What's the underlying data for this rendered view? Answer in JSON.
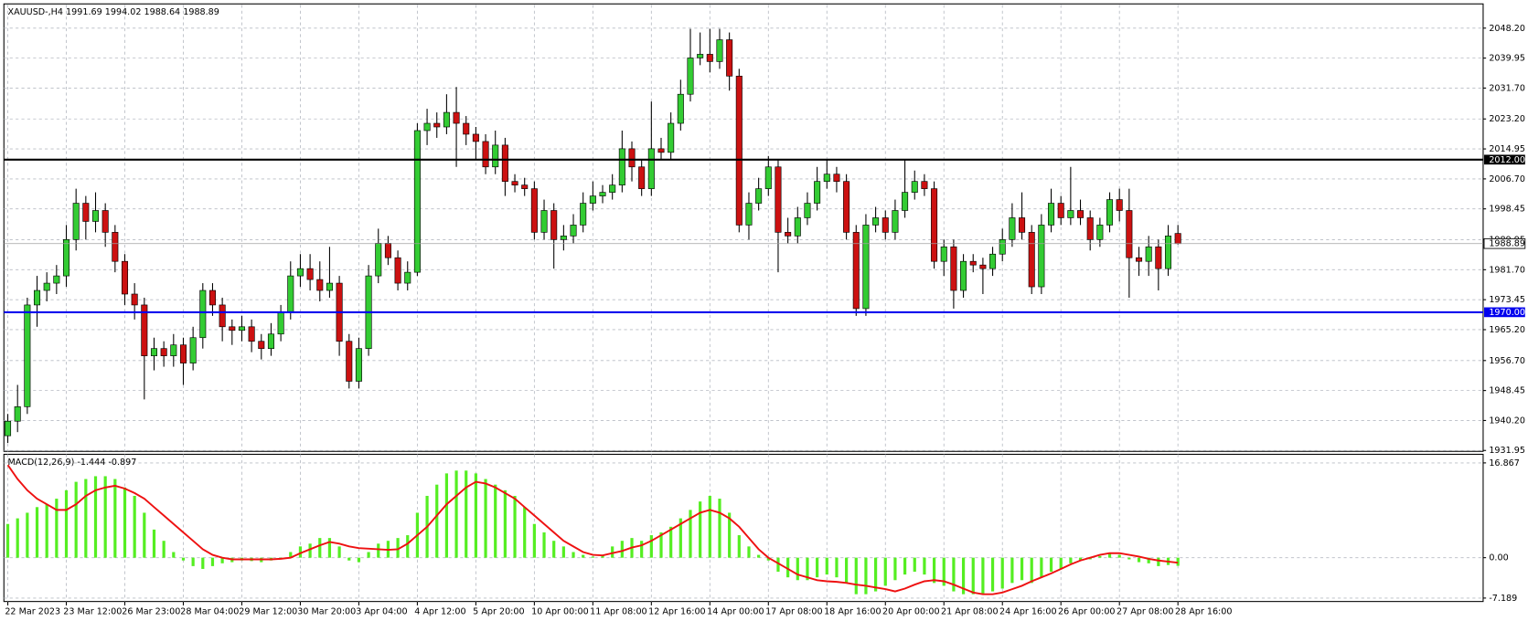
{
  "chart_data": {
    "type": "candlestick",
    "title": "XAUUSD-,H4",
    "categories": [
      "22 Mar 2023",
      null,
      null,
      null,
      null,
      null,
      "23 Mar 12:00",
      null,
      null,
      null,
      null,
      null,
      "26 Mar 23:00",
      null,
      null,
      null,
      null,
      null,
      "28 Mar 04:00",
      null,
      null,
      null,
      null,
      null,
      "29 Mar 12:00",
      null,
      null,
      null,
      null,
      null,
      "30 Mar 20:00",
      null,
      null,
      null,
      null,
      null,
      "3 Apr 04:00",
      null,
      null,
      null,
      null,
      null,
      "4 Apr 12:00",
      null,
      null,
      null,
      null,
      null,
      "5 Apr 20:00",
      null,
      null,
      null,
      null,
      null,
      "10 Apr 00:00",
      null,
      null,
      null,
      null,
      null,
      "11 Apr 08:00",
      null,
      null,
      null,
      null,
      null,
      "12 Apr 16:00",
      null,
      null,
      null,
      null,
      null,
      "14 Apr 00:00",
      null,
      null,
      null,
      null,
      null,
      "17 Apr 08:00",
      null,
      null,
      null,
      null,
      null,
      "18 Apr 16:00",
      null,
      null,
      null,
      null,
      null,
      "20 Apr 00:00",
      null,
      null,
      null,
      null,
      null,
      "21 Apr 08:00",
      null,
      null,
      null,
      null,
      null,
      "24 Apr 16:00",
      null,
      null,
      null,
      null,
      null,
      "26 Apr 00:00",
      null,
      null,
      null,
      null,
      null,
      "27 Apr 08:00",
      null,
      null,
      null,
      null,
      null,
      "28 Apr 16:00"
    ],
    "candles": [
      [
        1936,
        1942,
        1934,
        1940
      ],
      [
        1940,
        1950,
        1937,
        1944
      ],
      [
        1944,
        1974,
        1942,
        1972
      ],
      [
        1972,
        1980,
        1966,
        1976
      ],
      [
        1976,
        1981,
        1973,
        1978
      ],
      [
        1978,
        1983,
        1975,
        1980
      ],
      [
        1980,
        1994,
        1977,
        1990
      ],
      [
        1990,
        2004,
        1987,
        2000
      ],
      [
        2000,
        2002,
        1990,
        1995
      ],
      [
        1995,
        2003,
        1992,
        1998
      ],
      [
        1998,
        2000,
        1988,
        1992
      ],
      [
        1992,
        1994,
        1981,
        1984
      ],
      [
        1984,
        1986,
        1972,
        1975
      ],
      [
        1975,
        1978,
        1968,
        1972
      ],
      [
        1972,
        1974,
        1946,
        1958
      ],
      [
        1958,
        1963,
        1954,
        1960
      ],
      [
        1960,
        1962,
        1955,
        1958
      ],
      [
        1958,
        1964,
        1955,
        1961
      ],
      [
        1961,
        1963,
        1950,
        1956
      ],
      [
        1956,
        1966,
        1954,
        1963
      ],
      [
        1963,
        1978,
        1960,
        1976
      ],
      [
        1976,
        1978,
        1969,
        1972
      ],
      [
        1972,
        1974,
        1962,
        1966
      ],
      [
        1966,
        1968,
        1961,
        1965
      ],
      [
        1965,
        1969,
        1962,
        1966
      ],
      [
        1966,
        1968,
        1959,
        1962
      ],
      [
        1962,
        1964,
        1957,
        1960
      ],
      [
        1960,
        1967,
        1958,
        1964
      ],
      [
        1964,
        1972,
        1962,
        1970
      ],
      [
        1970,
        1984,
        1968,
        1980
      ],
      [
        1980,
        1986,
        1977,
        1982
      ],
      [
        1982,
        1986,
        1976,
        1979
      ],
      [
        1979,
        1984,
        1973,
        1976
      ],
      [
        1976,
        1988,
        1974,
        1978
      ],
      [
        1978,
        1980,
        1958,
        1962
      ],
      [
        1962,
        1964,
        1949,
        1951
      ],
      [
        1951,
        1963,
        1949,
        1960
      ],
      [
        1960,
        1983,
        1958,
        1980
      ],
      [
        1980,
        1993,
        1978,
        1989
      ],
      [
        1989,
        1991,
        1983,
        1985
      ],
      [
        1985,
        1987,
        1976,
        1978
      ],
      [
        1978,
        1984,
        1976,
        1981
      ],
      [
        1981,
        2022,
        1980,
        2020
      ],
      [
        2020,
        2026,
        2016,
        2022
      ],
      [
        2022,
        2025,
        2018,
        2021
      ],
      [
        2021,
        2030,
        2019,
        2025
      ],
      [
        2025,
        2032,
        2010,
        2022
      ],
      [
        2022,
        2024,
        2016,
        2019
      ],
      [
        2019,
        2021,
        2012,
        2017
      ],
      [
        2017,
        2019,
        2008,
        2010
      ],
      [
        2010,
        2020,
        2008,
        2016
      ],
      [
        2016,
        2018,
        2002,
        2006
      ],
      [
        2006,
        2008,
        2003,
        2005
      ],
      [
        2005,
        2007,
        2002,
        2004
      ],
      [
        2004,
        2006,
        1990,
        1992
      ],
      [
        1992,
        2001,
        1990,
        1998
      ],
      [
        1998,
        2000,
        1982,
        1990
      ],
      [
        1990,
        1994,
        1987,
        1991
      ],
      [
        1991,
        1997,
        1989,
        1994
      ],
      [
        1994,
        2003,
        1992,
        2000
      ],
      [
        2000,
        2006,
        1998,
        2002
      ],
      [
        2002,
        2005,
        2000,
        2003
      ],
      [
        2003,
        2008,
        2001,
        2005
      ],
      [
        2005,
        2020,
        2003,
        2015
      ],
      [
        2015,
        2017,
        2006,
        2010
      ],
      [
        2010,
        2012,
        2002,
        2004
      ],
      [
        2004,
        2028,
        2002,
        2015
      ],
      [
        2015,
        2018,
        2012,
        2014
      ],
      [
        2014,
        2025,
        2012,
        2022
      ],
      [
        2022,
        2034,
        2020,
        2030
      ],
      [
        2030,
        2048,
        2028,
        2040
      ],
      [
        2040,
        2047,
        2038,
        2041
      ],
      [
        2041,
        2048,
        2036,
        2039
      ],
      [
        2039,
        2048,
        2037,
        2045
      ],
      [
        2045,
        2047,
        2031,
        2035
      ],
      [
        2035,
        2037,
        1992,
        1994
      ],
      [
        1994,
        2003,
        1990,
        2000
      ],
      [
        2000,
        2007,
        1998,
        2004
      ],
      [
        2004,
        2013,
        2002,
        2010
      ],
      [
        2010,
        2012,
        1981,
        1992
      ],
      [
        1992,
        1996,
        1989,
        1991
      ],
      [
        1991,
        1999,
        1989,
        1996
      ],
      [
        1996,
        2003,
        1994,
        2000
      ],
      [
        2000,
        2010,
        1998,
        2006
      ],
      [
        2006,
        2012,
        2004,
        2008
      ],
      [
        2008,
        2010,
        2003,
        2006
      ],
      [
        2006,
        2008,
        1990,
        1992
      ],
      [
        1992,
        1994,
        1969,
        1971
      ],
      [
        1971,
        1997,
        1969,
        1994
      ],
      [
        1994,
        1999,
        1992,
        1996
      ],
      [
        1996,
        1998,
        1990,
        1992
      ],
      [
        1992,
        2001,
        1990,
        1998
      ],
      [
        1998,
        2012,
        1996,
        2003
      ],
      [
        2003,
        2009,
        2001,
        2006
      ],
      [
        2006,
        2008,
        2002,
        2004
      ],
      [
        2004,
        2006,
        1982,
        1984
      ],
      [
        1984,
        1990,
        1980,
        1988
      ],
      [
        1988,
        1990,
        1971,
        1976
      ],
      [
        1976,
        1986,
        1974,
        1984
      ],
      [
        1984,
        1986,
        1981,
        1983
      ],
      [
        1983,
        1985,
        1975,
        1982
      ],
      [
        1982,
        1988,
        1980,
        1986
      ],
      [
        1986,
        1993,
        1984,
        1990
      ],
      [
        1990,
        2000,
        1988,
        1996
      ],
      [
        1996,
        2003,
        1990,
        1992
      ],
      [
        1992,
        1994,
        1975,
        1977
      ],
      [
        1977,
        1997,
        1975,
        1994
      ],
      [
        1994,
        2004,
        1992,
        2000
      ],
      [
        2000,
        2002,
        1994,
        1996
      ],
      [
        1996,
        2010,
        1994,
        1998
      ],
      [
        1998,
        2001,
        1994,
        1996
      ],
      [
        1996,
        1998,
        1987,
        1990
      ],
      [
        1990,
        1996,
        1988,
        1994
      ],
      [
        1994,
        2003,
        1992,
        2001
      ],
      [
        2001,
        2004,
        1995,
        1998
      ],
      [
        1998,
        2004,
        1974,
        1985
      ],
      [
        1985,
        1988,
        1980,
        1984
      ],
      [
        1984,
        1991,
        1980,
        1988
      ],
      [
        1988,
        1990,
        1976,
        1982
      ],
      [
        1982,
        1994,
        1980,
        1991
      ],
      [
        1991.69,
        1994.02,
        1988.64,
        1988.89
      ]
    ],
    "up_color": "#33cc33",
    "down_color": "#cc1111",
    "ylim": [
      1931.7,
      2054.6
    ],
    "yticks": [
      {
        "value": 2048.2,
        "label": "2048.20"
      },
      2039.95,
      {
        "value": 2031.7,
        "label": "2031.70"
      },
      {
        "value": 2023.2,
        "label": "2023.20"
      },
      2014.95,
      {
        "value": 2006.7,
        "label": "2006.70"
      },
      1998.45,
      1989.95,
      {
        "value": 1981.7,
        "label": "1981.70"
      },
      1973.45,
      {
        "value": 1965.2,
        "label": "1965.20"
      },
      {
        "value": 1956.7,
        "label": "1956.70"
      },
      1948.45,
      {
        "value": 1940.2,
        "label": "1940.20"
      },
      1931.95
    ],
    "grid": true,
    "hlines": [
      {
        "value": 2012,
        "label": "2012.00",
        "color": "#000000"
      },
      {
        "value": 1970,
        "label": "1970.00",
        "color": "#0000ee"
      }
    ],
    "indicator": {
      "type": "macd",
      "title": "MACD(12,26,9)",
      "ylim": [
        -7.8,
        18.4
      ],
      "yticks": [
        16.867,
        {
          "value": 0,
          "label": "0.00"
        },
        -7.189
      ],
      "histogram": {
        "color": "#55ee22",
        "values": [
          6,
          7,
          8,
          9,
          9.5,
          10.5,
          12,
          13.5,
          14,
          14.5,
          14.5,
          14,
          12.5,
          11,
          8,
          5,
          3,
          1,
          -0.5,
          -1.5,
          -2,
          -1.5,
          -1,
          -0.8,
          -0.5,
          -0.6,
          -0.8,
          -0.5,
          0,
          1,
          2,
          2.5,
          3.5,
          3.5,
          2,
          -0.5,
          -0.8,
          1,
          2.5,
          3,
          3.5,
          4,
          8,
          11,
          13,
          15,
          15.5,
          15.5,
          15,
          14,
          13,
          12,
          11,
          9,
          6,
          4.5,
          3,
          2,
          1,
          0.5,
          0.2,
          0.5,
          2,
          3,
          3.5,
          3,
          4,
          4.5,
          5.5,
          7,
          8.5,
          10,
          11,
          10.5,
          8,
          4,
          2,
          0.5,
          -0.5,
          -2.5,
          -3.5,
          -4,
          -4,
          -3.5,
          -3,
          -3.5,
          -4.5,
          -6.5,
          -6.5,
          -6,
          -5,
          -4,
          -3,
          -2.5,
          -3,
          -4.5,
          -5,
          -6,
          -6.5,
          -6.5,
          -6.5,
          -6,
          -5.5,
          -4.5,
          -4,
          -4.5,
          -3.5,
          -2.5,
          -2,
          -1,
          -0.5,
          -0.3,
          0.3,
          0.8,
          0.5,
          -0.3,
          -0.8,
          -1,
          -1.5,
          -1.3,
          -1.444
        ]
      },
      "signal": {
        "color": "#ee1111",
        "values": [
          16.5,
          14,
          12,
          10.5,
          9.5,
          8.5,
          8.5,
          9.5,
          11,
          12,
          12.5,
          12.8,
          12.3,
          11.5,
          10.5,
          9,
          7.5,
          6,
          4.5,
          3,
          1.5,
          0.5,
          0,
          -0.3,
          -0.3,
          -0.3,
          -0.3,
          -0.3,
          -0.2,
          0,
          0.8,
          1.5,
          2.2,
          2.8,
          2.5,
          2,
          1.7,
          1.6,
          1.5,
          1.4,
          1.5,
          2.5,
          4,
          5.5,
          7.5,
          9.5,
          11,
          12.5,
          13.5,
          13.2,
          12.5,
          11.5,
          10.5,
          9,
          7.5,
          6,
          4.5,
          3,
          2,
          1,
          0.5,
          0.4,
          0.8,
          1.2,
          1.8,
          2.2,
          3,
          4,
          5,
          6,
          7,
          8,
          8.5,
          8,
          7,
          5.5,
          3.5,
          1.5,
          0,
          -1,
          -2,
          -3,
          -3.5,
          -4,
          -4.2,
          -4.3,
          -4.5,
          -4.8,
          -5,
          -5.3,
          -5.6,
          -6,
          -5.5,
          -4.8,
          -4.2,
          -4,
          -4.2,
          -4.8,
          -5.5,
          -6.2,
          -6.5,
          -6.5,
          -6.2,
          -5.6,
          -5,
          -4.2,
          -3.5,
          -2.8,
          -2,
          -1.2,
          -0.5,
          0,
          0.5,
          0.8,
          0.8,
          0.5,
          0.2,
          -0.2,
          -0.5,
          -0.7,
          -0.897
        ]
      }
    }
  }
}
